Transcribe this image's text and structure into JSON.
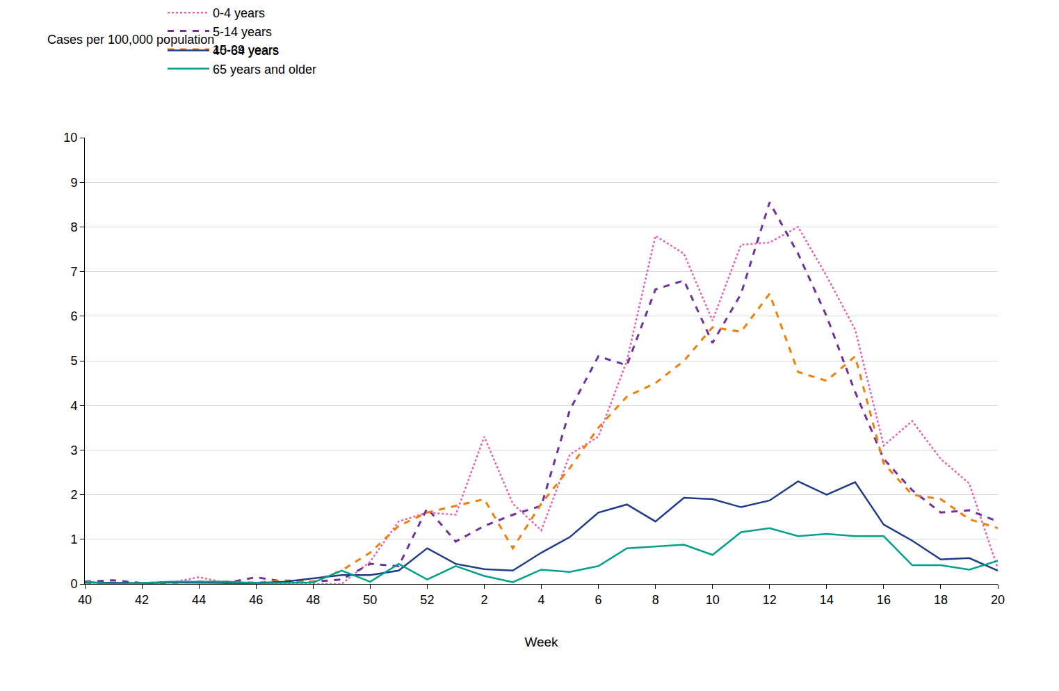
{
  "chart_data": {
    "type": "line",
    "y_label": "Cases per 100,000 population",
    "x_label": "Week",
    "categories": [
      40,
      null,
      42,
      null,
      44,
      null,
      46,
      null,
      48,
      null,
      50,
      null,
      52,
      null,
      2,
      null,
      4,
      null,
      6,
      null,
      8,
      null,
      10,
      null,
      12,
      null,
      14,
      null,
      16,
      null,
      18,
      null,
      20
    ],
    "series": [
      {
        "name": "0-4 years",
        "color": "#e75fae",
        "line_style": "dotted",
        "values": [
          0.05,
          0,
          0.02,
          0.03,
          0.15,
          0.02,
          0.02,
          0.02,
          0,
          0,
          0.5,
          1.4,
          1.6,
          1.55,
          3.3,
          1.8,
          1.2,
          2.9,
          3.3,
          5.0,
          7.8,
          7.4,
          5.9,
          7.6,
          7.65,
          8.0,
          6.9,
          5.7,
          3.1,
          3.65,
          2.8,
          2.25,
          0.35
        ]
      },
      {
        "name": "5-14 years",
        "color": "#7030a0",
        "line_style": "dashed",
        "values": [
          0.05,
          0.08,
          0.02,
          0.03,
          0.05,
          0.03,
          0.15,
          0.05,
          0.05,
          0.1,
          0.45,
          0.4,
          1.7,
          0.95,
          1.3,
          1.55,
          1.75,
          3.9,
          5.1,
          4.9,
          6.6,
          6.8,
          5.4,
          6.5,
          8.55,
          7.4,
          6.0,
          4.3,
          2.8,
          2.1,
          1.6,
          1.65,
          1.4
        ]
      },
      {
        "name": "15-39 years",
        "color": "#f07f09",
        "line_style": "dashed",
        "values": [
          0.03,
          0,
          0.02,
          0.03,
          0.05,
          0.05,
          0.03,
          0.08,
          0.05,
          0.3,
          0.7,
          1.3,
          1.6,
          1.75,
          1.9,
          0.8,
          1.8,
          2.6,
          3.5,
          4.2,
          4.5,
          5.0,
          5.75,
          5.65,
          6.5,
          4.75,
          4.55,
          5.1,
          2.7,
          2.0,
          1.9,
          1.45,
          1.25
        ]
      },
      {
        "name": "40-64 years",
        "color": "#1f3c88",
        "line_style": "solid",
        "values": [
          0.03,
          0.02,
          0.02,
          0.03,
          0.03,
          0.03,
          0.02,
          0.05,
          0.12,
          0.2,
          0.2,
          0.3,
          0.8,
          0.45,
          0.33,
          0.3,
          0.7,
          1.05,
          1.6,
          1.78,
          1.4,
          1.93,
          1.9,
          1.72,
          1.87,
          2.3,
          2.0,
          2.28,
          1.33,
          0.97,
          0.55,
          0.58,
          0.3
        ]
      },
      {
        "name": "65 years and older",
        "color": "#00a08a",
        "line_style": "solid",
        "values": [
          0.05,
          0,
          0.02,
          0.05,
          0.05,
          0.05,
          0.02,
          0.02,
          0.03,
          0.3,
          0.05,
          0.45,
          0.1,
          0.4,
          0.18,
          0.04,
          0.32,
          0.27,
          0.4,
          0.8,
          0.84,
          0.88,
          0.65,
          1.16,
          1.25,
          1.07,
          1.12,
          1.07,
          1.07,
          0.42,
          0.42,
          0.32,
          0.52
        ]
      }
    ],
    "ylim": [
      0,
      10
    ],
    "yticks": [
      0,
      1,
      2,
      3,
      4,
      5,
      6,
      7,
      8,
      9,
      10
    ],
    "grid": true,
    "legend": "top"
  }
}
